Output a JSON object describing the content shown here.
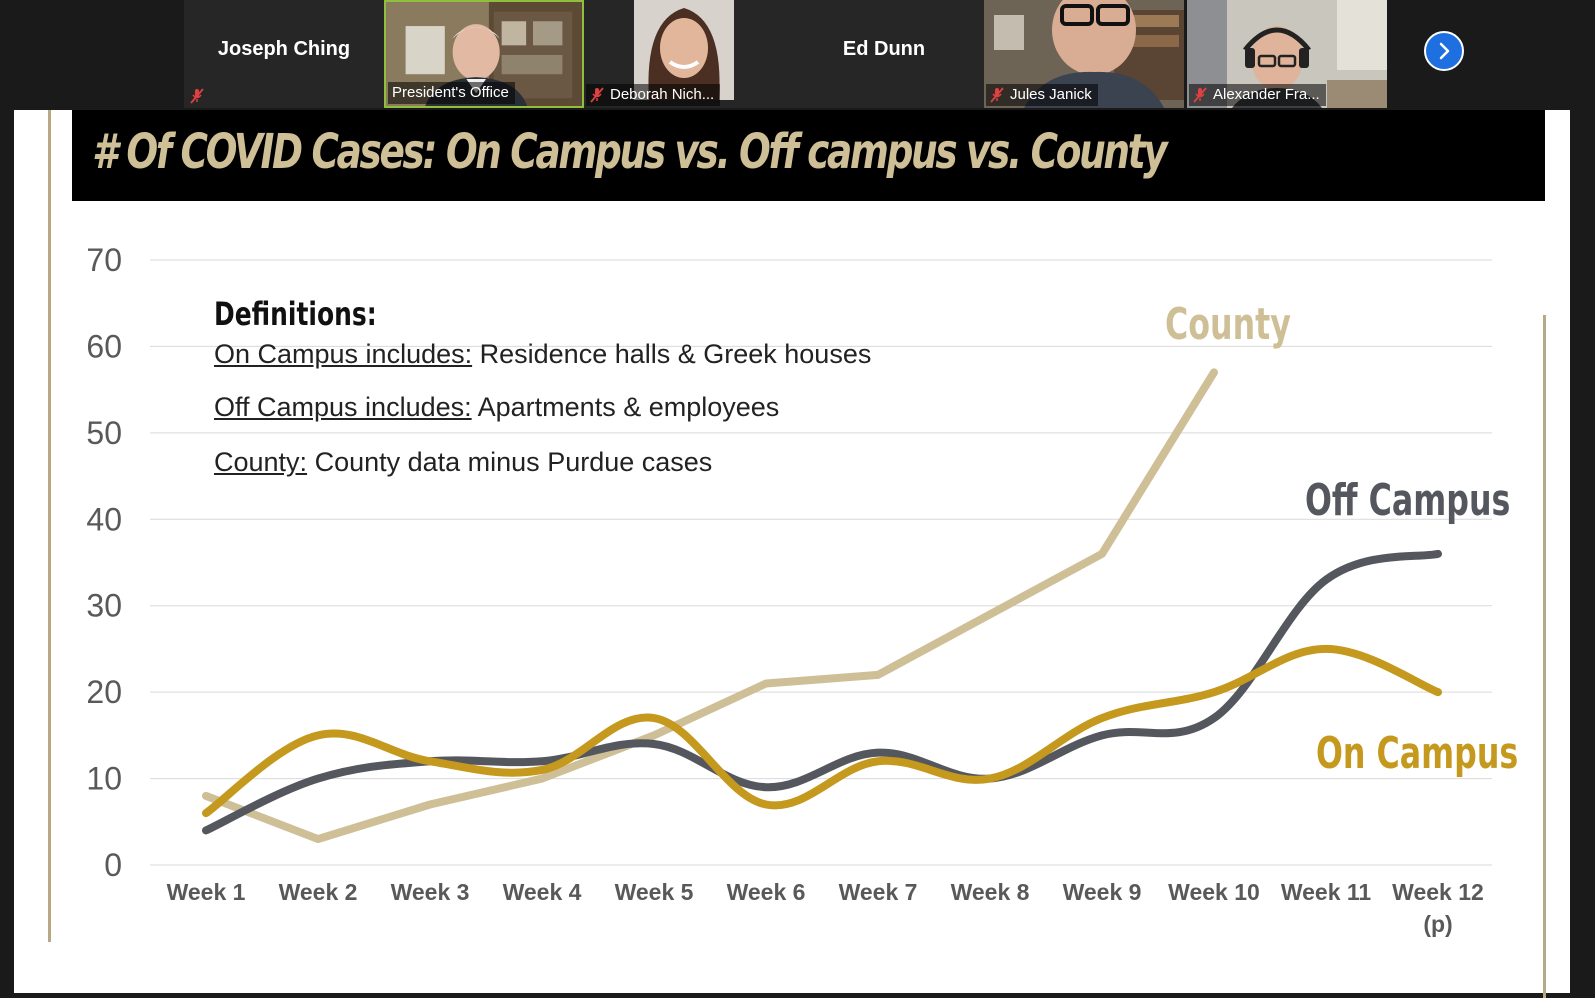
{
  "participants": [
    {
      "name": "Joseph Ching",
      "video": false,
      "muted": true,
      "label": ""
    },
    {
      "name": "President's Office",
      "video": true,
      "muted": false,
      "label": "President's Office",
      "active": true
    },
    {
      "name": "Deborah Nich...",
      "video": true,
      "muted": true,
      "label": "Deborah Nich..."
    },
    {
      "name": "Ed Dunn",
      "video": false,
      "muted": false,
      "label": ""
    },
    {
      "name": "Jules Janick",
      "video": true,
      "muted": true,
      "label": "Jules Janick"
    },
    {
      "name": "Alexander Fra...",
      "video": true,
      "muted": true,
      "label": "Alexander Fra..."
    }
  ],
  "next_icon": "chevron-right-icon",
  "slide": {
    "title": "# Of COVID Cases: On Campus vs. Off campus vs. County",
    "definitions": {
      "heading": "Definitions:",
      "on_campus_term": "On Campus includes:",
      "on_campus_text": " Residence halls & Greek houses",
      "off_campus_term": "Off Campus includes:",
      "off_campus_text": " Apartments & employees",
      "county_term": "County:",
      "county_text": " County data minus Purdue cases"
    },
    "labels": {
      "county": "County",
      "off_campus": "Off Campus",
      "on_campus": "On Campus"
    }
  },
  "colors": {
    "county": "#cebf96",
    "off_campus": "#54575d",
    "on_campus": "#c4991d",
    "title_text": "#cebf96"
  },
  "chart_data": {
    "type": "line",
    "categories": [
      "Week 1",
      "Week 2",
      "Week 3",
      "Week 4",
      "Week 5",
      "Week 6",
      "Week 7",
      "Week 8",
      "Week 9",
      "Week 10",
      "Week 11",
      "Week 12"
    ],
    "category_sublabels": [
      "",
      "",
      "",
      "",
      "",
      "",
      "",
      "",
      "",
      "",
      "",
      "(p)"
    ],
    "ylim": [
      0,
      70
    ],
    "yticks": [
      0,
      10,
      20,
      30,
      40,
      50,
      60,
      70
    ],
    "grid": true,
    "series": [
      {
        "name": "On Campus",
        "values": [
          6,
          15,
          12,
          11,
          17,
          7,
          12,
          10,
          17,
          20,
          25,
          20
        ]
      },
      {
        "name": "Off Campus",
        "values": [
          4,
          10,
          12,
          12,
          14,
          9,
          13,
          10,
          15,
          17,
          33,
          36
        ]
      },
      {
        "name": "County",
        "values": [
          8,
          3,
          7,
          10,
          15,
          21,
          22,
          29,
          36,
          57,
          null,
          null
        ]
      }
    ]
  }
}
